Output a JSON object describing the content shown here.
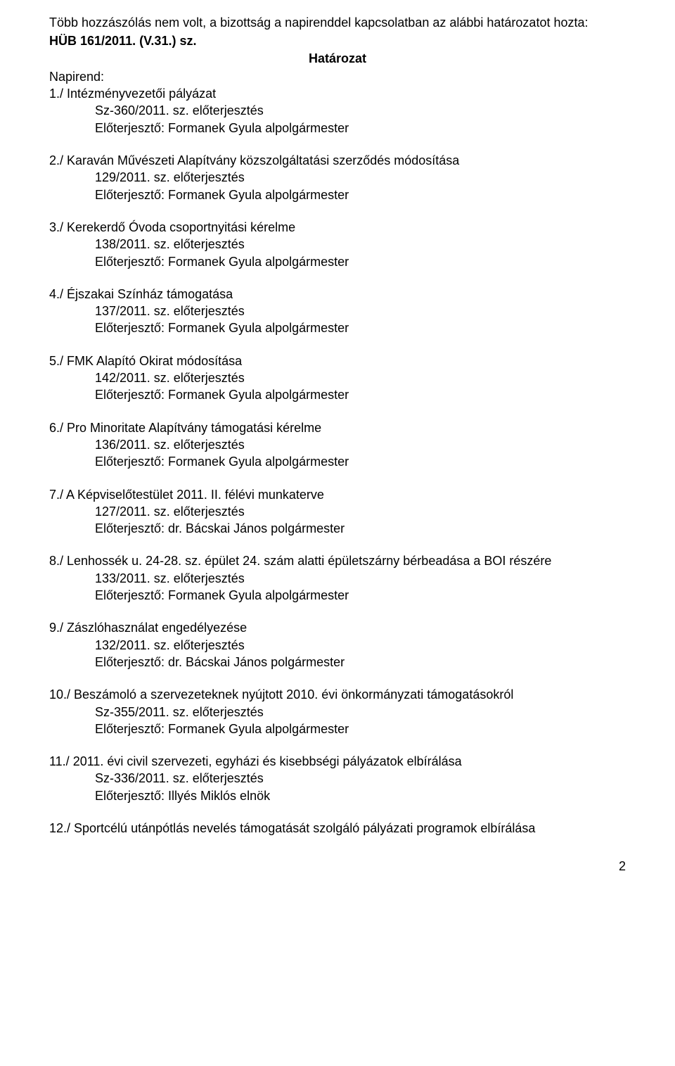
{
  "intro_line": "Több hozzászólás nem volt, a bizottság a napirenddel kapcsolatban az alábbi határozatot hozta:",
  "decision_ref": "HÜB 161/2011. (V.31.) sz.",
  "decision_label": "Határozat",
  "napirend_label": "Napirend:",
  "common": {
    "sz_eloterjesztes": "sz. előterjesztés",
    "formanek": "Előterjesztő: Formanek Gyula alpolgármester",
    "bacskai": "Előterjesztő: dr. Bácskai János polgármester",
    "illyes": "Előterjesztő: Illyés Miklós elnök"
  },
  "items": [
    {
      "title": "1./ Intézményvezetői pályázat",
      "ref": "Sz-360/2011.",
      "presenter_key": "formanek"
    },
    {
      "title": "2./ Karaván Művészeti Alapítvány közszolgáltatási szerződés módosítása",
      "ref": "129/2011.",
      "presenter_key": "formanek"
    },
    {
      "title": "3./ Kerekerdő Óvoda csoportnyitási kérelme",
      "ref": "138/2011.",
      "presenter_key": "formanek"
    },
    {
      "title": "4./ Éjszakai Színház támogatása",
      "ref": "137/2011.",
      "presenter_key": "formanek"
    },
    {
      "title": "5./ FMK Alapító Okirat módosítása",
      "ref": "142/2011.",
      "presenter_key": "formanek"
    },
    {
      "title": "6./ Pro Minoritate Alapítvány támogatási kérelme",
      "ref": "136/2011.",
      "presenter_key": "formanek"
    },
    {
      "title": "7./ A Képviselőtestület 2011. II. félévi munkaterve",
      "ref": "127/2011.",
      "presenter_key": "bacskai"
    },
    {
      "title": "8./ Lenhossék u. 24-28. sz. épület 24. szám alatti épületszárny bérbeadása a BOI részére",
      "ref": "133/2011.",
      "presenter_key": "formanek"
    },
    {
      "title": "9./ Zászlóhasználat engedélyezése",
      "ref": "132/2011.",
      "presenter_key": "bacskai"
    },
    {
      "title": "10./ Beszámoló a szervezeteknek nyújtott 2010. évi önkormányzati támogatásokról",
      "ref": "Sz-355/2011.",
      "presenter_key": "formanek"
    },
    {
      "title": "11./ 2011. évi civil szervezeti, egyházi és kisebbségi pályázatok elbírálása",
      "ref": "Sz-336/2011.",
      "presenter_key": "illyes"
    }
  ],
  "last_item_title": "12./ Sportcélú utánpótlás nevelés támogatását szolgáló pályázati programok elbírálása",
  "page_number": "2"
}
